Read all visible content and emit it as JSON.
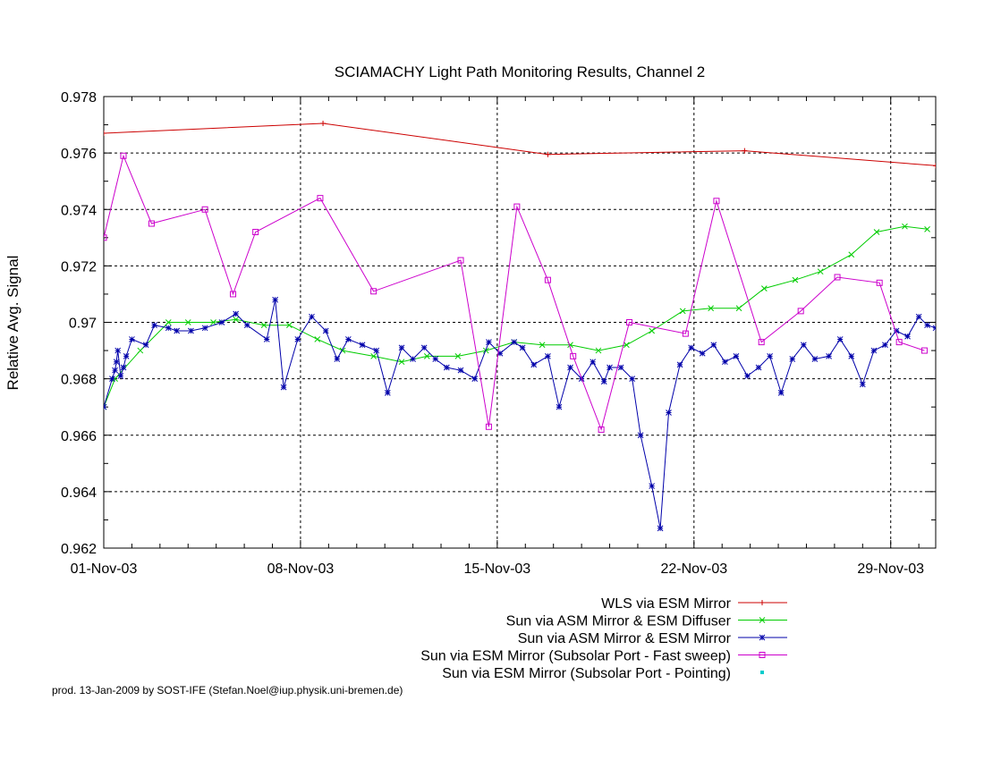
{
  "chart_data": {
    "type": "line",
    "title": "SCIAMACHY Light Path Monitoring Results, Channel 2",
    "ylabel": "Relative Avg. Signal",
    "xlabel": "",
    "xlim": [
      0,
      29.6
    ],
    "ylim": [
      0.962,
      0.978
    ],
    "x_unit": "days since 01-Nov-03",
    "x_ticks": [
      {
        "value": 0,
        "label": "01-Nov-03"
      },
      {
        "value": 7,
        "label": "08-Nov-03"
      },
      {
        "value": 14,
        "label": "15-Nov-03"
      },
      {
        "value": 21,
        "label": "22-Nov-03"
      },
      {
        "value": 28,
        "label": "29-Nov-03"
      }
    ],
    "y_ticks": [
      {
        "value": 0.962,
        "label": "0.962"
      },
      {
        "value": 0.964,
        "label": "0.964"
      },
      {
        "value": 0.966,
        "label": "0.966"
      },
      {
        "value": 0.968,
        "label": "0.968"
      },
      {
        "value": 0.97,
        "label": "0.97"
      },
      {
        "value": 0.972,
        "label": "0.972"
      },
      {
        "value": 0.974,
        "label": "0.974"
      },
      {
        "value": 0.976,
        "label": "0.976"
      },
      {
        "value": 0.978,
        "label": "0.978"
      }
    ],
    "grid": true,
    "legend_position": "bottom-right",
    "series": [
      {
        "name": "WLS via ESM Mirror",
        "color": "#cc0000",
        "marker": "plus",
        "x": [
          0.0,
          7.8,
          15.8,
          22.8,
          29.6
        ],
        "y": [
          0.9767,
          0.97705,
          0.97595,
          0.97608,
          0.97555
        ]
      },
      {
        "name": "Sun via ASM Mirror & ESM Diffuser",
        "color": "#00cc00",
        "marker": "x",
        "x": [
          0.0,
          0.4,
          1.3,
          2.3,
          3.0,
          3.9,
          4.7,
          5.7,
          6.6,
          7.6,
          8.5,
          9.6,
          10.6,
          11.5,
          12.6,
          13.6,
          14.6,
          15.6,
          16.6,
          17.6,
          18.6,
          19.5,
          20.6,
          21.6,
          22.6,
          23.5,
          24.6,
          25.5,
          26.6,
          27.5,
          28.5,
          29.3
        ],
        "y": [
          0.967,
          0.968,
          0.969,
          0.97,
          0.97,
          0.97,
          0.9701,
          0.9699,
          0.9699,
          0.9694,
          0.969,
          0.9688,
          0.9686,
          0.9688,
          0.9688,
          0.969,
          0.9693,
          0.9692,
          0.9692,
          0.969,
          0.9692,
          0.9697,
          0.9704,
          0.9705,
          0.9705,
          0.9712,
          0.9715,
          0.9718,
          0.9724,
          0.9732,
          0.9734,
          0.9733
        ]
      },
      {
        "name": "Sun via ASM Mirror & ESM Mirror",
        "color": "#0000aa",
        "marker": "star",
        "x": [
          0.0,
          0.3,
          0.4,
          0.45,
          0.5,
          0.6,
          0.7,
          0.8,
          1.0,
          1.5,
          1.8,
          2.3,
          2.6,
          3.1,
          3.6,
          4.2,
          4.7,
          5.1,
          5.8,
          6.1,
          6.4,
          6.9,
          7.4,
          7.9,
          8.3,
          8.7,
          9.2,
          9.7,
          10.1,
          10.6,
          11.0,
          11.4,
          11.8,
          12.2,
          12.7,
          13.2,
          13.7,
          14.1,
          14.6,
          14.9,
          15.3,
          15.8,
          16.2,
          16.6,
          17.0,
          17.4,
          17.8,
          18.0,
          18.4,
          18.8,
          19.1,
          19.5,
          19.8,
          20.1,
          20.5,
          20.9,
          21.3,
          21.7,
          22.1,
          22.5,
          22.9,
          23.3,
          23.7,
          24.1,
          24.5,
          24.9,
          25.3,
          25.8,
          26.2,
          26.6,
          27.0,
          27.4,
          27.8,
          28.2,
          28.6,
          29.0,
          29.3,
          29.6
        ],
        "y": [
          0.967,
          0.968,
          0.9683,
          0.9686,
          0.969,
          0.9681,
          0.9684,
          0.9688,
          0.9694,
          0.9692,
          0.9699,
          0.9698,
          0.9697,
          0.9697,
          0.9698,
          0.97,
          0.9703,
          0.9699,
          0.9694,
          0.9708,
          0.9677,
          0.9694,
          0.9702,
          0.9697,
          0.9687,
          0.9694,
          0.9692,
          0.969,
          0.9675,
          0.9691,
          0.9687,
          0.9691,
          0.9687,
          0.9684,
          0.9683,
          0.968,
          0.9693,
          0.9689,
          0.9693,
          0.9691,
          0.9685,
          0.9688,
          0.967,
          0.9684,
          0.968,
          0.9686,
          0.9679,
          0.9684,
          0.9684,
          0.968,
          0.966,
          0.9642,
          0.9627,
          0.9668,
          0.9685,
          0.9691,
          0.9689,
          0.9692,
          0.9686,
          0.9688,
          0.9681,
          0.9684,
          0.9688,
          0.9675,
          0.9687,
          0.9692,
          0.9687,
          0.9688,
          0.9694,
          0.9688,
          0.9678,
          0.969,
          0.9692,
          0.9697,
          0.9695,
          0.9702,
          0.9699,
          0.9698
        ]
      },
      {
        "name": "Sun via ESM Mirror (Subsolar Port - Fast sweep)",
        "color": "#cc00cc",
        "marker": "square",
        "x": [
          0.0,
          0.7,
          1.7,
          3.6,
          4.6,
          5.4,
          7.7,
          9.6,
          12.7,
          13.7,
          14.7,
          15.8,
          16.7,
          17.7,
          18.7,
          20.7,
          21.8,
          23.4,
          24.8,
          26.1,
          27.6,
          28.3,
          29.2
        ],
        "y": [
          0.973,
          0.9759,
          0.9735,
          0.974,
          0.971,
          0.9732,
          0.9744,
          0.9711,
          0.9722,
          0.9663,
          0.9741,
          0.9715,
          0.9688,
          0.9662,
          0.97,
          0.9696,
          0.9743,
          0.9693,
          0.9704,
          0.9716,
          0.9714,
          0.9693,
          0.969
        ]
      },
      {
        "name": "Sun via ESM Mirror (Subsolar Port - Pointing)",
        "color": "#00cccc",
        "marker": "dot",
        "x": [],
        "y": []
      }
    ]
  },
  "footer": {
    "credit": "prod. 13-Jan-2009 by SOST-IFE (Stefan.Noel@iup.physik.uni-bremen.de)"
  }
}
